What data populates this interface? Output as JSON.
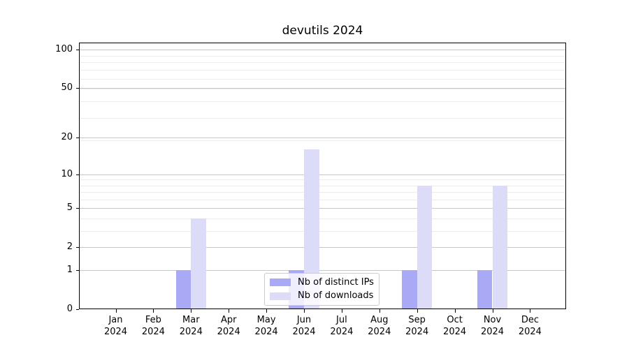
{
  "chart_data": {
    "type": "bar",
    "title": "devutils 2024",
    "categories": [
      "Jan 2024",
      "Feb 2024",
      "Mar 2024",
      "Apr 2024",
      "May 2024",
      "Jun 2024",
      "Jul 2024",
      "Aug 2024",
      "Sep 2024",
      "Oct 2024",
      "Nov 2024",
      "Dec 2024"
    ],
    "months": [
      "Jan",
      "Feb",
      "Mar",
      "Apr",
      "May",
      "Jun",
      "Jul",
      "Aug",
      "Sep",
      "Oct",
      "Nov",
      "Dec"
    ],
    "year": "2024",
    "series": [
      {
        "name": "Nb of distinct IPs",
        "color": "#a9a9f6",
        "values": [
          0,
          0,
          1,
          0,
          0,
          1,
          0,
          0,
          1,
          0,
          1,
          0
        ]
      },
      {
        "name": "Nb of downloads",
        "color": "#dcdcf8",
        "values": [
          0,
          0,
          4,
          0,
          0,
          16,
          0,
          0,
          8,
          0,
          8,
          0
        ]
      }
    ],
    "yscale": "log10(1+v)",
    "ylim": [
      0,
      113
    ],
    "ytick_values": [
      0,
      1,
      2,
      5,
      10,
      20,
      50,
      100
    ],
    "ytick_labels": [
      "0",
      "1",
      "2",
      "5",
      "10",
      "20",
      "50",
      "100"
    ],
    "grid": "horizontal major and minor",
    "legend_position": "lower center inside plot"
  }
}
